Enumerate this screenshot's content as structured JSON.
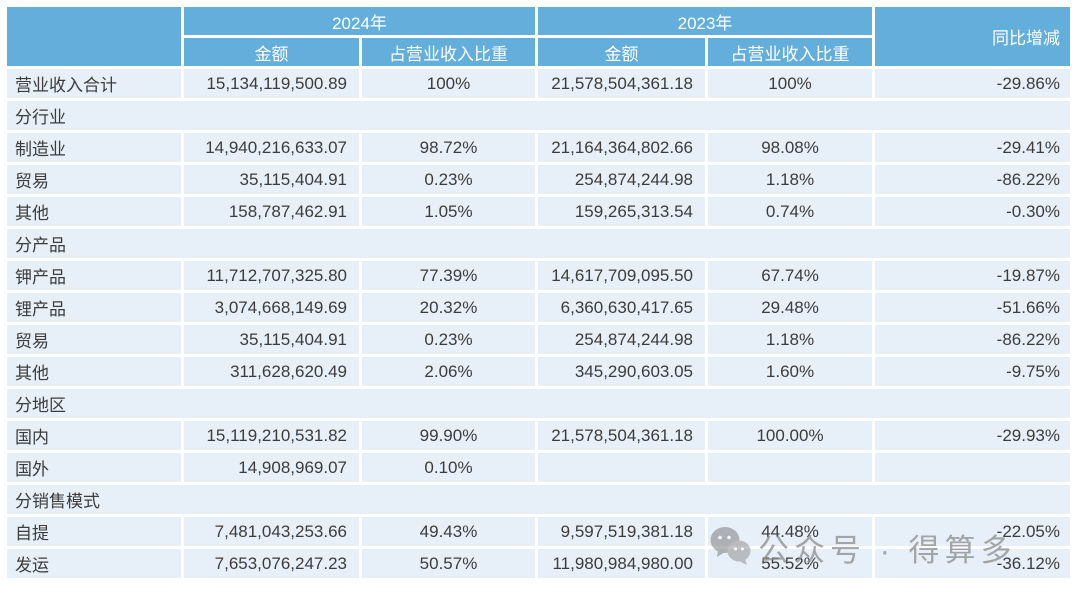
{
  "table": {
    "header": {
      "year_2024": "2024年",
      "year_2023": "2023年",
      "yoy": "同比增减",
      "amount_2024": "金额",
      "pct_2024": "占营业收入比重",
      "amount_2023": "金额",
      "pct_2023": "占营业收入比重"
    },
    "rows": [
      {
        "type": "data",
        "label": "营业收入合计",
        "a2024": "15,134,119,500.89",
        "p2024": "100%",
        "a2023": "21,578,504,361.18",
        "p2023": "100%",
        "yoy": "-29.86%"
      },
      {
        "type": "section",
        "label": "分行业"
      },
      {
        "type": "data",
        "label": "制造业",
        "a2024": "14,940,216,633.07",
        "p2024": "98.72%",
        "a2023": "21,164,364,802.66",
        "p2023": "98.08%",
        "yoy": "-29.41%"
      },
      {
        "type": "data",
        "label": "贸易",
        "a2024": "35,115,404.91",
        "p2024": "0.23%",
        "a2023": "254,874,244.98",
        "p2023": "1.18%",
        "yoy": "-86.22%"
      },
      {
        "type": "data",
        "label": "其他",
        "a2024": "158,787,462.91",
        "p2024": "1.05%",
        "a2023": "159,265,313.54",
        "p2023": "0.74%",
        "yoy": "-0.30%"
      },
      {
        "type": "section",
        "label": "分产品"
      },
      {
        "type": "data",
        "label": "钾产品",
        "a2024": "11,712,707,325.80",
        "p2024": "77.39%",
        "a2023": "14,617,709,095.50",
        "p2023": "67.74%",
        "yoy": "-19.87%"
      },
      {
        "type": "data",
        "label": "锂产品",
        "a2024": "3,074,668,149.69",
        "p2024": "20.32%",
        "a2023": "6,360,630,417.65",
        "p2023": "29.48%",
        "yoy": "-51.66%"
      },
      {
        "type": "data",
        "label": "贸易",
        "a2024": "35,115,404.91",
        "p2024": "0.23%",
        "a2023": "254,874,244.98",
        "p2023": "1.18%",
        "yoy": "-86.22%"
      },
      {
        "type": "data",
        "label": "其他",
        "a2024": "311,628,620.49",
        "p2024": "2.06%",
        "a2023": "345,290,603.05",
        "p2023": "1.60%",
        "yoy": "-9.75%"
      },
      {
        "type": "section",
        "label": "分地区"
      },
      {
        "type": "data",
        "label": "国内",
        "a2024": "15,119,210,531.82",
        "p2024": "99.90%",
        "a2023": "21,578,504,361.18",
        "p2023": "100.00%",
        "yoy": "-29.93%"
      },
      {
        "type": "data",
        "label": "国外",
        "a2024": "14,908,969.07",
        "p2024": "0.10%",
        "a2023": "",
        "p2023": "",
        "yoy": ""
      },
      {
        "type": "section",
        "label": "分销售模式"
      },
      {
        "type": "data",
        "label": "自提",
        "a2024": "7,481,043,253.66",
        "p2024": "49.43%",
        "a2023": "9,597,519,381.18",
        "p2023": "44.48%",
        "yoy": "-22.05%"
      },
      {
        "type": "data",
        "label": "发运",
        "a2024": "7,653,076,247.23",
        "p2024": "50.57%",
        "a2023": "11,980,984,980.00",
        "p2023": "55.52%",
        "yoy": "-36.12%"
      }
    ]
  },
  "watermark": {
    "icon": "wechat-icon",
    "text": "公众号 · 得算多"
  },
  "colors": {
    "header_bg": "#63aedb",
    "row_bg": "#e7f0f8",
    "text": "#3c3c3c",
    "header_text": "#ffffff",
    "watermark": "#8c8c8c",
    "page_bg": "#ffffff"
  }
}
